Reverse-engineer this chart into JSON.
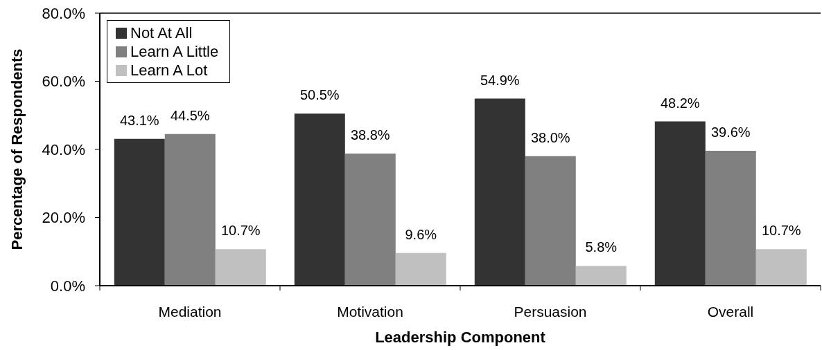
{
  "chart_data": {
    "type": "bar",
    "xlabel": "Leadership Component",
    "ylabel": "Percentage of Respondents",
    "categories": [
      "Mediation",
      "Motivation",
      "Persuasion",
      "Overall"
    ],
    "series": [
      {
        "name": "Not At All",
        "color": "#333333",
        "values": [
          43.1,
          50.5,
          54.9,
          48.2
        ],
        "value_labels": [
          "43.1%",
          "50.5%",
          "54.9%",
          "48.2%"
        ]
      },
      {
        "name": "Learn A Little",
        "color": "#808080",
        "values": [
          44.5,
          38.8,
          38.0,
          39.6
        ],
        "value_labels": [
          "44.5%",
          "38.8%",
          "38.0%",
          "39.6%"
        ]
      },
      {
        "name": "Learn A Lot",
        "color": "#c0c0c0",
        "values": [
          10.7,
          9.6,
          5.8,
          10.7
        ],
        "value_labels": [
          "10.7%",
          "9.6%",
          "5.8%",
          "10.7%"
        ]
      }
    ],
    "ylim": [
      0,
      80
    ],
    "yticks": [
      {
        "value": 0,
        "label": "0.0%"
      },
      {
        "value": 20,
        "label": "20.0%"
      },
      {
        "value": 40,
        "label": "40.0%"
      },
      {
        "value": 60,
        "label": "60.0%"
      },
      {
        "value": 80,
        "label": "80.0%"
      }
    ],
    "legend": "top left"
  }
}
